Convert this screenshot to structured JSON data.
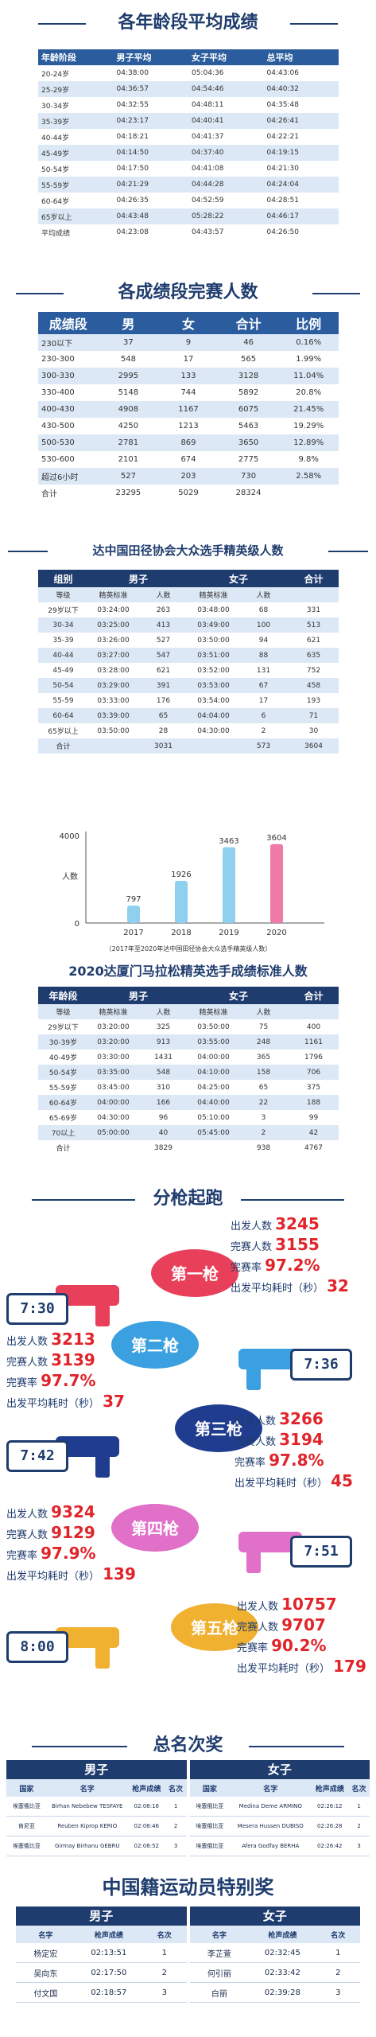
{
  "age_section": {
    "title": "各年龄段平均成绩",
    "headers": [
      "年龄阶段",
      "男子平均",
      "女子平均",
      "总平均"
    ],
    "rows": [
      [
        "20-24岁",
        "04:38:00",
        "05:04:36",
        "04:43:06"
      ],
      [
        "25-29岁",
        "04:36:57",
        "04:54:46",
        "04:40:32"
      ],
      [
        "30-34岁",
        "04:32:55",
        "04:48:11",
        "04:35:48"
      ],
      [
        "35-39岁",
        "04:23:17",
        "04:40:41",
        "04:26:41"
      ],
      [
        "40-44岁",
        "04:18:21",
        "04:41:37",
        "04:22:21"
      ],
      [
        "45-49岁",
        "04:14:50",
        "04:37:40",
        "04:19:15"
      ],
      [
        "50-54岁",
        "04:17:50",
        "04:41:08",
        "04:21:30"
      ],
      [
        "55-59岁",
        "04:21:29",
        "04:44:28",
        "04:24:04"
      ],
      [
        "60-64岁",
        "04:26:35",
        "04:52:59",
        "04:28:51"
      ],
      [
        "65岁以上",
        "04:43:48",
        "05:28:22",
        "04:46:17"
      ],
      [
        "平均成绩",
        "04:23:08",
        "04:43:57",
        "04:26:50"
      ]
    ]
  },
  "score_section": {
    "title": "各成绩段完赛人数",
    "headers": [
      "成绩段",
      "男",
      "女",
      "合计",
      "比例"
    ],
    "rows": [
      [
        "230以下",
        "37",
        "9",
        "46",
        "0.16%"
      ],
      [
        "230-300",
        "548",
        "17",
        "565",
        "1.99%"
      ],
      [
        "300-330",
        "2995",
        "133",
        "3128",
        "11.04%"
      ],
      [
        "330-400",
        "5148",
        "744",
        "5892",
        "20.8%"
      ],
      [
        "400-430",
        "4908",
        "1167",
        "6075",
        "21.45%"
      ],
      [
        "430-500",
        "4250",
        "1213",
        "5463",
        "19.29%"
      ],
      [
        "500-530",
        "2781",
        "869",
        "3650",
        "12.89%"
      ],
      [
        "530-600",
        "2101",
        "674",
        "2775",
        "9.8%"
      ],
      [
        "超过6小时",
        "527",
        "203",
        "730",
        "2.58%"
      ],
      [
        "合计",
        "23295",
        "5029",
        "28324",
        ""
      ]
    ]
  },
  "elite_section": {
    "title": "达中国田径协会大众选手精英级人数",
    "group_headers": [
      "组别",
      "男子",
      "女子",
      "合计"
    ],
    "sub_headers": [
      "等级",
      "精英标准",
      "人数",
      "精英标准",
      "人数"
    ],
    "rows": [
      [
        "29岁以下",
        "03:24:00",
        "263",
        "03:48:00",
        "68",
        "331"
      ],
      [
        "30-34",
        "03:25:00",
        "413",
        "03:49:00",
        "100",
        "513"
      ],
      [
        "35-39",
        "03:26:00",
        "527",
        "03:50:00",
        "94",
        "621"
      ],
      [
        "40-44",
        "03:27:00",
        "547",
        "03:51:00",
        "88",
        "635"
      ],
      [
        "45-49",
        "03:28:00",
        "621",
        "03:52:00",
        "131",
        "752"
      ],
      [
        "50-54",
        "03:29:00",
        "391",
        "03:53:00",
        "67",
        "458"
      ],
      [
        "55-59",
        "03:33:00",
        "176",
        "03:54:00",
        "17",
        "193"
      ],
      [
        "60-64",
        "03:39:00",
        "65",
        "04:04:00",
        "6",
        "71"
      ],
      [
        "65岁以上",
        "03:50:00",
        "28",
        "04:30:00",
        "2",
        "30"
      ],
      [
        "合计",
        "",
        "3031",
        "",
        "573",
        "3604"
      ]
    ]
  },
  "chart_data": {
    "type": "bar",
    "categories": [
      "2017",
      "2018",
      "2019",
      "2020"
    ],
    "values": [
      797,
      1926,
      3463,
      3604
    ],
    "ylabel": "人数",
    "ylim": [
      0,
      4000
    ],
    "yticks": [
      "4000",
      "0"
    ],
    "caption": "（2017年至2020年达中国田径协会大众选手精英级人数）",
    "colors": [
      "#8fd0ee",
      "#8fd0ee",
      "#8fd0ee",
      "#f07aa8"
    ]
  },
  "xiamen_section": {
    "title": "2020达厦门马拉松精英选手成绩标准人数",
    "group_headers": [
      "年龄段",
      "男子",
      "女子",
      "合计"
    ],
    "sub_headers": [
      "等级",
      "精英标准",
      "人数",
      "精英标准",
      "人数"
    ],
    "rows": [
      [
        "29岁以下",
        "03:20:00",
        "325",
        "03:50:00",
        "75",
        "400"
      ],
      [
        "30-39岁",
        "03:20:00",
        "913",
        "03:55:00",
        "248",
        "1161"
      ],
      [
        "40-49岁",
        "03:30:00",
        "1431",
        "04:00:00",
        "365",
        "1796"
      ],
      [
        "50-54岁",
        "03:35:00",
        "548",
        "04:10:00",
        "158",
        "706"
      ],
      [
        "55-59岁",
        "03:45:00",
        "310",
        "04:25:00",
        "65",
        "375"
      ],
      [
        "60-64岁",
        "04:00:00",
        "166",
        "04:40:00",
        "22",
        "188"
      ],
      [
        "65-69岁",
        "04:30:00",
        "96",
        "05:10:00",
        "3",
        "99"
      ],
      [
        "70以上",
        "05:00:00",
        "40",
        "05:45:00",
        "2",
        "42"
      ],
      [
        "合计",
        "",
        "3829",
        "",
        "938",
        "4767"
      ]
    ]
  },
  "guns_section": {
    "title": "分枪起跑",
    "labels": {
      "start": "出发人数",
      "finish": "完赛人数",
      "rate": "完赛率",
      "avg": "出发平均耗时（秒）"
    },
    "guns": [
      {
        "name": "第一枪",
        "time": "7:30",
        "start": "3245",
        "finish": "3155",
        "rate": "97.2%",
        "avg": "32"
      },
      {
        "name": "第二枪",
        "time": "7:36",
        "start": "3213",
        "finish": "3139",
        "rate": "97.7%",
        "avg": "37"
      },
      {
        "name": "第三枪",
        "time": "7:42",
        "start": "3266",
        "finish": "3194",
        "rate": "97.8%",
        "avg": "45"
      },
      {
        "name": "第四枪",
        "time": "7:51",
        "start": "9324",
        "finish": "9129",
        "rate": "97.9%",
        "avg": "139"
      },
      {
        "name": "第五枪",
        "time": "8:00",
        "start": "10757",
        "finish": "9707",
        "rate": "90.2%",
        "avg": "179"
      }
    ]
  },
  "overall_section": {
    "title": "总名次奖",
    "male_label": "男子",
    "female_label": "女子",
    "headers": [
      "国家",
      "名字",
      "枪声成绩",
      "名次"
    ],
    "male": [
      [
        "埃塞俄比亚",
        "Birhan Nebebew TESFAYE",
        "02:08:16",
        "1"
      ],
      [
        "肯尼亚",
        "Reuben Kiprop KERIO",
        "02:08:46",
        "2"
      ],
      [
        "埃塞俄比亚",
        "Girmay Birhanu GEBRU",
        "02:08:52",
        "3"
      ]
    ],
    "female": [
      [
        "埃塞俄比亚",
        "Medina Deme ARMINO",
        "02:26:12",
        "1"
      ],
      [
        "埃塞俄比亚",
        "Mesera Hussen DUBISO",
        "02:26:28",
        "2"
      ],
      [
        "埃塞俄比亚",
        "Afera Godfay BERHA",
        "02:26:42",
        "3"
      ]
    ]
  },
  "china_section": {
    "title": "中国籍运动员特别奖",
    "male_label": "男子",
    "female_label": "女子",
    "headers": [
      "名字",
      "枪声成绩",
      "名次"
    ],
    "male": [
      [
        "杨定宏",
        "02:13:51",
        "1"
      ],
      [
        "吴向东",
        "02:17:50",
        "2"
      ],
      [
        "付文国",
        "02:18:57",
        "3"
      ]
    ],
    "female": [
      [
        "李芷萱",
        "02:32:45",
        "1"
      ],
      [
        "何引丽",
        "02:33:42",
        "2"
      ],
      [
        "白丽",
        "02:39:28",
        "3"
      ]
    ]
  }
}
